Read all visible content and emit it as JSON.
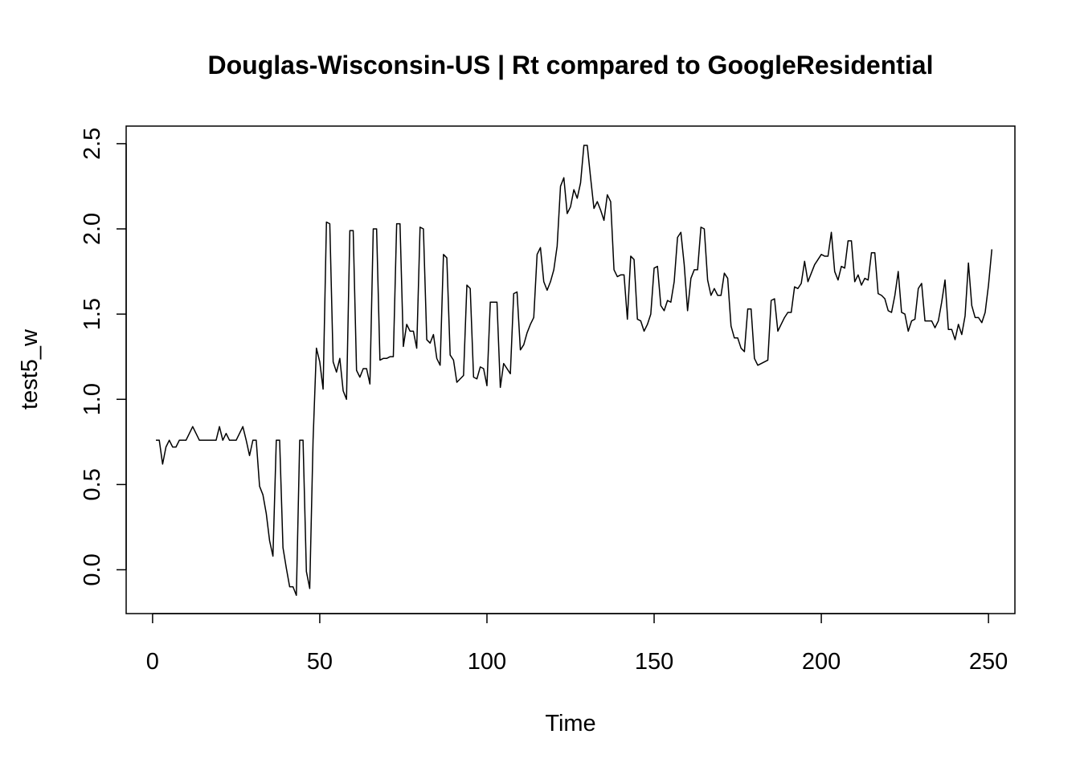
{
  "chart_data": {
    "type": "line",
    "title": "Douglas-Wisconsin-US | Rt compared to GoogleResidential",
    "xlabel": "Time",
    "ylabel": "test5_w",
    "xlim": [
      -7.9,
      257.9
    ],
    "ylim": [
      -0.2571,
      2.6031
    ],
    "x_ticks": [
      0,
      50,
      100,
      150,
      200,
      250
    ],
    "x_tick_labels": [
      "0",
      "50",
      "100",
      "150",
      "200",
      "250"
    ],
    "y_ticks": [
      0,
      0.5,
      1,
      1.5,
      2,
      2.5
    ],
    "y_tick_labels": [
      "0.0",
      "0.5",
      "1.0",
      "1.5",
      "2.0",
      "2.5"
    ],
    "grid": false,
    "series": [
      {
        "color": "#000000",
        "x_start": 1,
        "values": [
          0.76,
          0.76,
          0.62,
          0.72,
          0.76,
          0.72,
          0.72,
          0.76,
          0.76,
          0.76,
          0.8,
          0.84,
          0.8,
          0.76,
          0.76,
          0.76,
          0.76,
          0.76,
          0.76,
          0.84,
          0.76,
          0.8,
          0.76,
          0.76,
          0.76,
          0.8,
          0.84,
          0.76,
          0.67,
          0.76,
          0.76,
          0.49,
          0.44,
          0.33,
          0.17,
          0.08,
          0.76,
          0.76,
          0.13,
          0.01,
          -0.1,
          -0.1,
          -0.15,
          0.76,
          0.76,
          -0.01,
          -0.11,
          0.76,
          1.3,
          1.22,
          1.06,
          2.04,
          2.03,
          1.22,
          1.16,
          1.24,
          1.05,
          1.0,
          1.99,
          1.99,
          1.17,
          1.13,
          1.18,
          1.18,
          1.09,
          2.0,
          2.0,
          1.23,
          1.24,
          1.24,
          1.25,
          1.25,
          2.03,
          2.03,
          1.31,
          1.44,
          1.4,
          1.4,
          1.3,
          2.01,
          2.0,
          1.35,
          1.33,
          1.38,
          1.24,
          1.2,
          1.85,
          1.83,
          1.26,
          1.23,
          1.1,
          1.12,
          1.14,
          1.67,
          1.65,
          1.13,
          1.12,
          1.19,
          1.18,
          1.08,
          1.57,
          1.57,
          1.57,
          1.07,
          1.21,
          1.18,
          1.15,
          1.62,
          1.63,
          1.29,
          1.32,
          1.39,
          1.44,
          1.48,
          1.85,
          1.89,
          1.69,
          1.64,
          1.69,
          1.76,
          1.9,
          2.25,
          2.3,
          2.09,
          2.13,
          2.23,
          2.18,
          2.27,
          2.49,
          2.49,
          2.3,
          2.12,
          2.16,
          2.11,
          2.05,
          2.2,
          2.16,
          1.76,
          1.72,
          1.73,
          1.73,
          1.47,
          1.84,
          1.82,
          1.47,
          1.46,
          1.4,
          1.44,
          1.5,
          1.77,
          1.78,
          1.55,
          1.52,
          1.58,
          1.57,
          1.69,
          1.95,
          1.98,
          1.79,
          1.52,
          1.71,
          1.76,
          1.76,
          2.01,
          2.0,
          1.7,
          1.61,
          1.65,
          1.61,
          1.61,
          1.74,
          1.71,
          1.43,
          1.36,
          1.36,
          1.3,
          1.28,
          1.53,
          1.53,
          1.24,
          1.2,
          1.21,
          1.22,
          1.23,
          1.58,
          1.59,
          1.4,
          1.44,
          1.48,
          1.51,
          1.51,
          1.66,
          1.65,
          1.68,
          1.81,
          1.69,
          1.74,
          1.79,
          1.82,
          1.85,
          1.84,
          1.84,
          1.98,
          1.75,
          1.7,
          1.78,
          1.77,
          1.93,
          1.93,
          1.69,
          1.73,
          1.67,
          1.71,
          1.7,
          1.86,
          1.86,
          1.62,
          1.61,
          1.59,
          1.52,
          1.51,
          1.61,
          1.75,
          1.51,
          1.5,
          1.4,
          1.46,
          1.47,
          1.65,
          1.68,
          1.46,
          1.46,
          1.46,
          1.42,
          1.46,
          1.57,
          1.7,
          1.41,
          1.41,
          1.35,
          1.44,
          1.38,
          1.49,
          1.8,
          1.55,
          1.48,
          1.48,
          1.45,
          1.51,
          1.67,
          1.88
        ]
      }
    ]
  }
}
